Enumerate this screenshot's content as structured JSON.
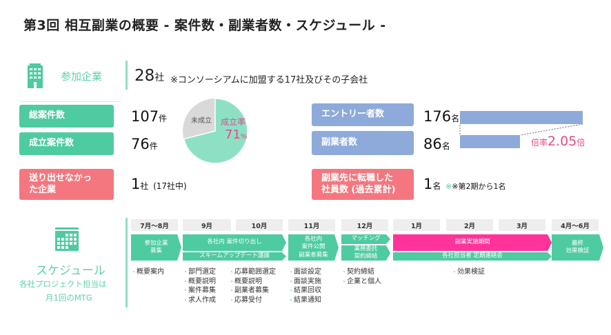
{
  "title": "第3回 相互副業の概要 - 案件数・副業者数・スケジュール -",
  "participants": {
    "label": "参加企業",
    "count": "28",
    "unit": "社",
    "note": "※コンソーシアムに加盟する17社及びその子会社",
    "icon": "building-icon"
  },
  "left": {
    "total_label": "総案件数",
    "total_value": "107",
    "total_unit": "件",
    "success_label": "成立案件数",
    "success_value": "76",
    "success_unit": "件",
    "none_label": "送り出せなかった企業",
    "none_value": "1",
    "none_unit": "社",
    "none_note": "(17社中)"
  },
  "pie": {
    "success_label": "成立率",
    "success_pct": "71",
    "pct_unit": "%",
    "fail_label": "未成立",
    "success_fraction": 0.71
  },
  "right": {
    "entry_label": "エントリー者数",
    "entry_value": "176",
    "entry_unit": "名",
    "worker_label": "副業者数",
    "worker_value": "86",
    "worker_unit": "名",
    "ratio_prefix": "倍率",
    "ratio": "2.05",
    "ratio_suffix": "倍",
    "transfer_label": "副業先に転職した社員数 (過去累計)",
    "transfer_value": "1",
    "transfer_unit": "名",
    "transfer_note": "※第2期から1名"
  },
  "schedule": {
    "title": "スケジュール",
    "sub1": "各社プロジェクト担当は",
    "sub2": "月1回のMTG",
    "icon": "calendar-icon",
    "months": [
      "7月～8月",
      "9月",
      "10月",
      "11月",
      "12月",
      "1月",
      "2月",
      "3月",
      "4月～6月"
    ],
    "phases": [
      "参加企業\n募集",
      "各社内 案件切り出し",
      "スキームアップデート議論",
      "各社内\n案件公開\n副業者募集",
      "マッチング",
      "業務委託\n契約締結",
      "副業実施期間",
      "各社担当者 定期連絡会",
      "最終\n効果検証"
    ],
    "bullets": [
      [
        "概要案内"
      ],
      [
        "部門選定",
        "概要説明",
        "案件募集",
        "求人作成"
      ],
      [
        "応募範囲選定",
        "概要説明",
        "副業者募集",
        "応募受付"
      ],
      [
        "面談設定",
        "面談実施",
        "結果回収",
        "結果通知"
      ],
      [
        "契約締結",
        "企業と個人"
      ],
      [
        "効果検証"
      ]
    ]
  },
  "colors": {
    "green": "#4ecba0",
    "red": "#f4777f",
    "blue": "#8eaadb",
    "pink": "#ff3399",
    "pie_green": "#8ee0c4",
    "pie_gray": "#d9d9d9"
  }
}
